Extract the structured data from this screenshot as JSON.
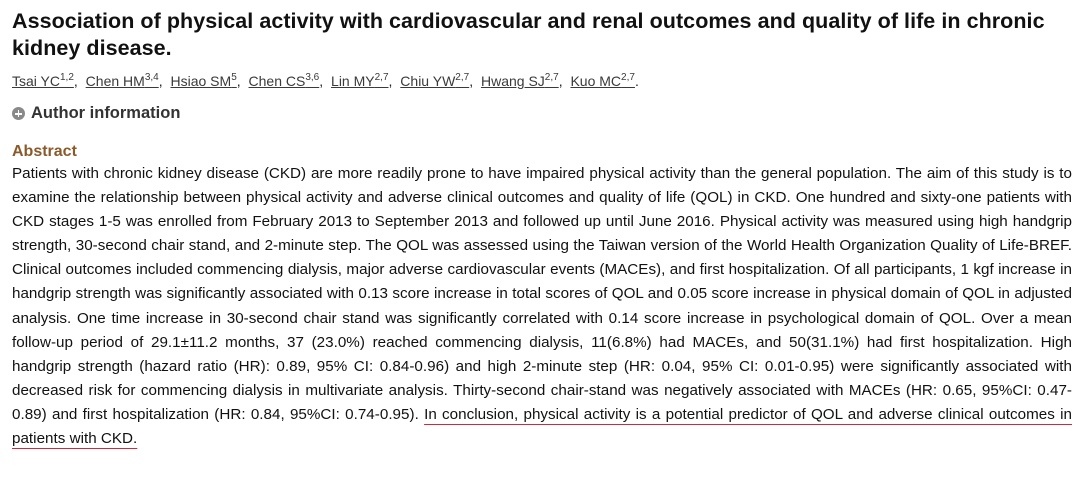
{
  "article": {
    "title": "Association of physical activity with cardiovascular and renal outcomes and quality of life in chronic kidney disease.",
    "authors": [
      {
        "name": "Tsai YC",
        "affil": "1,2"
      },
      {
        "name": "Chen HM",
        "affil": "3,4"
      },
      {
        "name": "Hsiao SM",
        "affil": "5"
      },
      {
        "name": "Chen CS",
        "affil": "3,6"
      },
      {
        "name": "Lin MY",
        "affil": "2,7"
      },
      {
        "name": "Chiu YW",
        "affil": "2,7"
      },
      {
        "name": "Hwang SJ",
        "affil": "2,7"
      },
      {
        "name": "Kuo MC",
        "affil": "2,7"
      }
    ],
    "author_info_label": "Author information",
    "abstract_heading": "Abstract",
    "abstract_main": "Patients with chronic kidney disease (CKD) are more readily prone to have impaired physical activity than the general population. The aim of this study is to examine the relationship between physical activity and adverse clinical outcomes and quality of life (QOL) in CKD. One hundred and sixty-one patients with CKD stages 1-5 was enrolled from February 2013 to September 2013 and followed up until June 2016. Physical activity was measured using high handgrip strength, 30-second chair stand, and 2-minute step. The QOL was assessed using the Taiwan version of the World Health Organization Quality of Life-BREF. Clinical outcomes included commencing dialysis, major adverse cardiovascular events (MACEs), and first hospitalization. Of all participants, 1 kgf increase in handgrip strength was significantly associated with 0.13 score increase in total scores of QOL and 0.05 score increase in physical domain of QOL in adjusted analysis. One time increase in 30-second chair stand was significantly correlated with 0.14 score increase in psychological domain of QOL. Over a mean follow-up period of 29.1±11.2 months, 37 (23.0%) reached commencing dialysis, 11(6.8%) had MACEs, and 50(31.1%) had first hospitalization. High handgrip strength (hazard ratio (HR): 0.89, 95% CI: 0.84-0.96) and high 2-minute step (HR: 0.04, 95% CI: 0.01-0.95) were significantly associated with decreased risk for commencing dialysis in multivariate analysis. Thirty-second chair-stand was negatively associated with MACEs (HR: 0.65, 95%CI: 0.47-0.89) and first hospitalization (HR: 0.84, 95%CI: 0.74-0.95). ",
    "abstract_conclusion": "In conclusion, physical activity is a potential predictor of QOL and adverse clinical outcomes in patients with CKD.",
    "colors": {
      "abstract_heading": "#8b5a2b",
      "highlight_underline": "#d6263a"
    }
  }
}
